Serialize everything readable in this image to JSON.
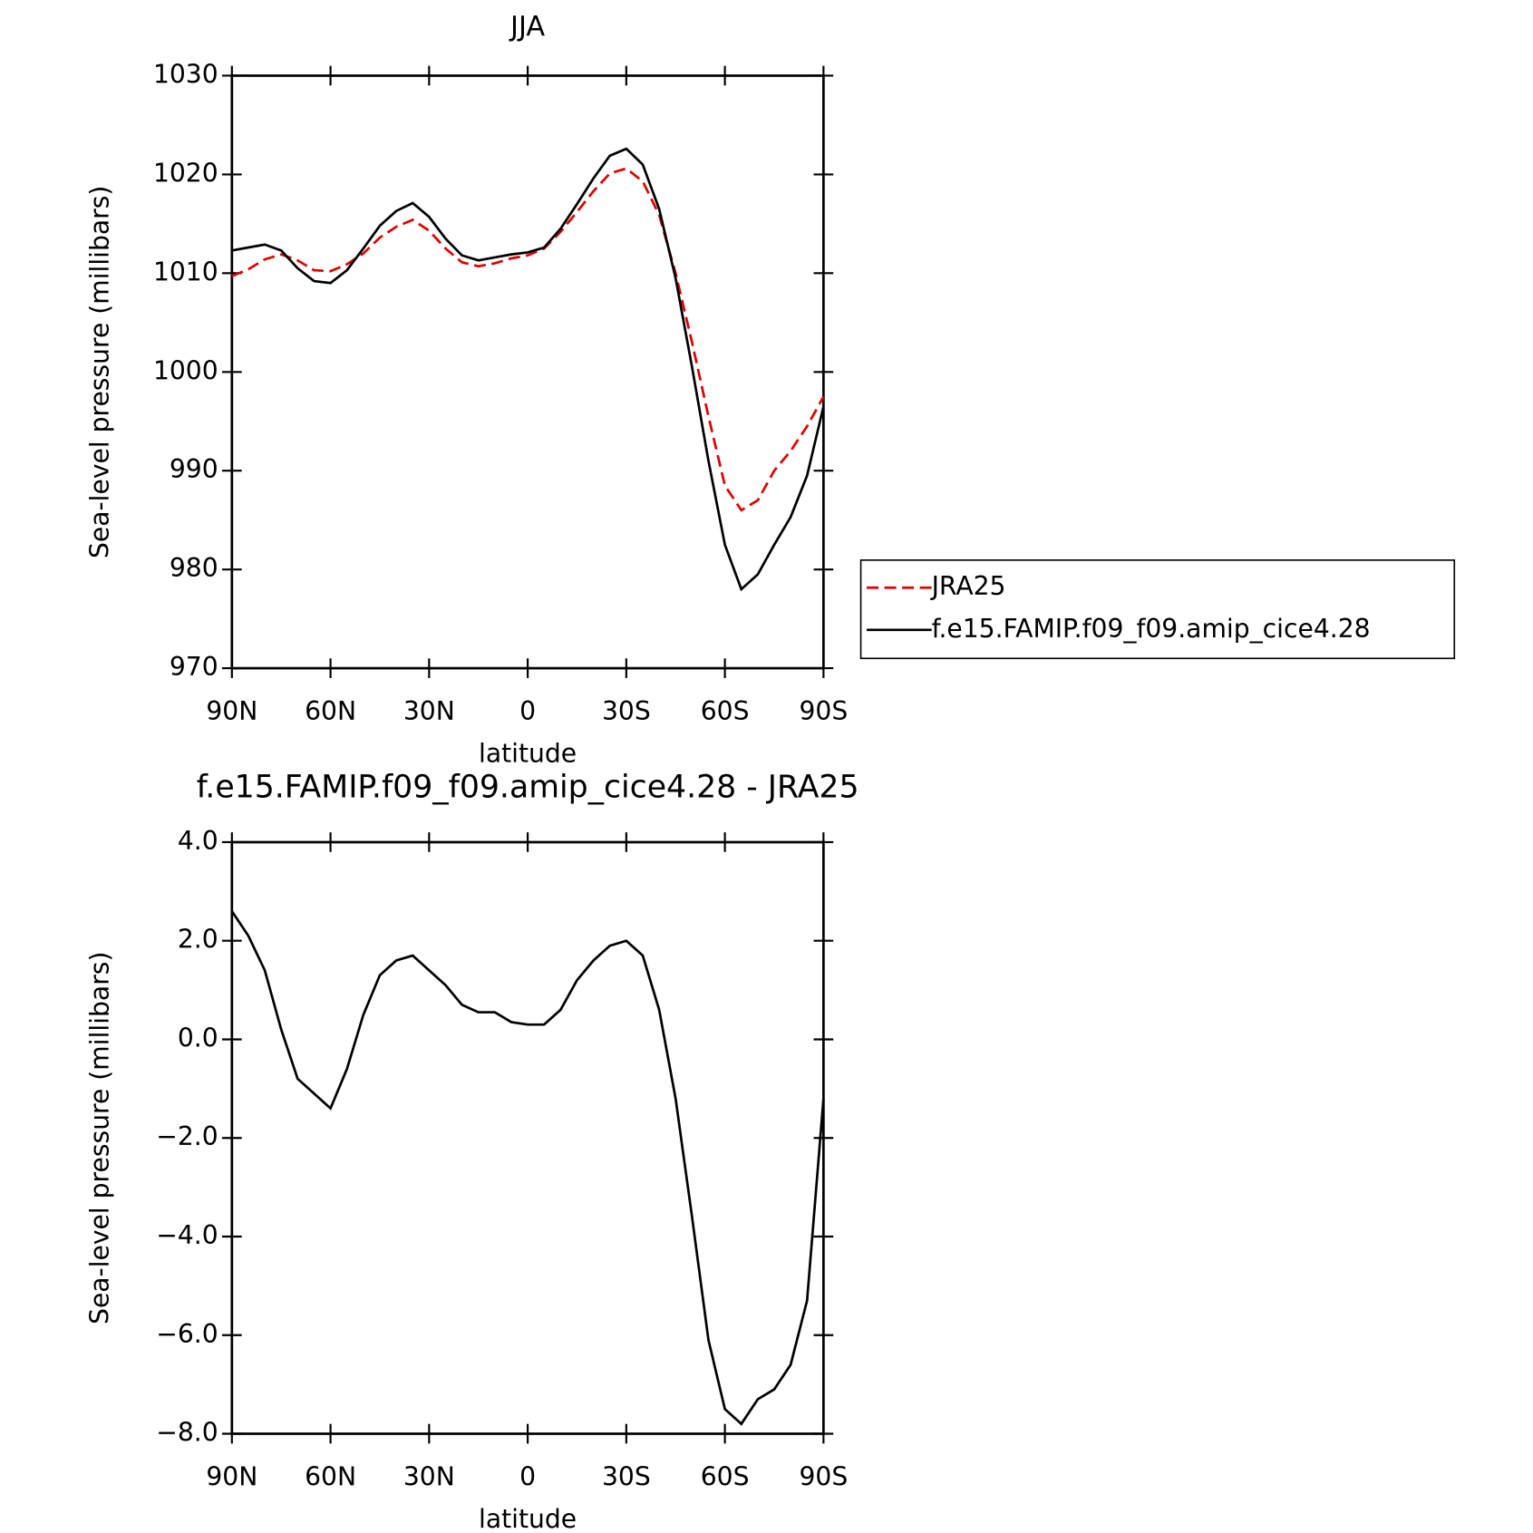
{
  "chart_data": [
    {
      "type": "line",
      "title": "JJA",
      "xlabel": "latitude",
      "ylabel": "Sea-level pressure (millibars)",
      "x": [
        90,
        85,
        80,
        75,
        70,
        65,
        60,
        55,
        50,
        45,
        40,
        35,
        30,
        25,
        20,
        15,
        10,
        5,
        0,
        -5,
        -10,
        -15,
        -20,
        -25,
        -30,
        -35,
        -40,
        -45,
        -50,
        -55,
        -60,
        -65,
        -70,
        -75,
        -80,
        -85,
        -90
      ],
      "series": [
        {
          "name": "JRA25",
          "color": "#e00000",
          "style": "dashed",
          "values": [
            1009.7,
            1010.4,
            1011.4,
            1011.9,
            1011.3,
            1010.3,
            1010.2,
            1010.9,
            1012.0,
            1013.6,
            1014.7,
            1015.4,
            1014.3,
            1012.5,
            1011.1,
            1010.7,
            1011.0,
            1011.5,
            1011.8,
            1012.5,
            1014.2,
            1016.2,
            1018.3,
            1020.1,
            1020.6,
            1019.3,
            1015.9,
            1010.0,
            1003.0,
            995.5,
            988.5,
            986.0,
            987.0,
            990.0,
            992.0,
            994.5,
            997.5
          ]
        },
        {
          "name": "f.e15.FAMIP.f09_f09.amip_cice4.28",
          "color": "#000000",
          "style": "solid",
          "values": [
            1012.3,
            1012.6,
            1012.9,
            1012.3,
            1010.5,
            1009.2,
            1009.0,
            1010.3,
            1012.5,
            1014.8,
            1016.3,
            1017.1,
            1015.7,
            1013.5,
            1011.8,
            1011.3,
            1011.6,
            1011.9,
            1012.1,
            1012.6,
            1014.5,
            1017.0,
            1019.6,
            1021.9,
            1022.6,
            1021.0,
            1016.5,
            1009.5,
            1000.5,
            991.0,
            982.5,
            978.0,
            979.5,
            982.5,
            985.3,
            989.5,
            996.5
          ]
        }
      ],
      "xlim": [
        90,
        -90
      ],
      "xticks": [
        {
          "value": 90,
          "label": "90N"
        },
        {
          "value": 60,
          "label": "60N"
        },
        {
          "value": 30,
          "label": "30N"
        },
        0,
        {
          "value": -30,
          "label": "30S"
        },
        {
          "value": -60,
          "label": "60S"
        },
        {
          "value": -90,
          "label": "90S"
        }
      ],
      "ylim": [
        970,
        1030
      ],
      "yticks": [
        970,
        980,
        990,
        1000,
        1010,
        1020,
        1030
      ],
      "legend": "right"
    },
    {
      "type": "line",
      "title": "f.e15.FAMIP.f09_f09.amip_cice4.28 - JRA25",
      "xlabel": "latitude",
      "ylabel": "Sea-level pressure (millibars)",
      "x": [
        90,
        85,
        80,
        75,
        70,
        65,
        60,
        55,
        50,
        45,
        40,
        35,
        30,
        25,
        20,
        15,
        10,
        5,
        0,
        -5,
        -10,
        -15,
        -20,
        -25,
        -30,
        -35,
        -40,
        -45,
        -50,
        -55,
        -60,
        -65,
        -70,
        -75,
        -80,
        -85,
        -90
      ],
      "series": [
        {
          "color": "#000000",
          "style": "solid",
          "values": [
            2.6,
            2.1,
            1.4,
            0.2,
            -0.8,
            -1.1,
            -1.4,
            -0.6,
            0.5,
            1.3,
            1.6,
            1.7,
            1.4,
            1.1,
            0.7,
            0.55,
            0.55,
            0.35,
            0.3,
            0.3,
            0.6,
            1.2,
            1.6,
            1.9,
            2.0,
            1.7,
            0.6,
            -1.2,
            -3.6,
            -6.1,
            -7.5,
            -7.8,
            -7.3,
            -7.1,
            -6.6,
            -5.3,
            -1.2
          ]
        }
      ],
      "xlim": [
        90,
        -90
      ],
      "xticks": [
        {
          "value": 90,
          "label": "90N"
        },
        {
          "value": 60,
          "label": "60N"
        },
        {
          "value": 30,
          "label": "30N"
        },
        0,
        {
          "value": -30,
          "label": "30S"
        },
        {
          "value": -60,
          "label": "60S"
        },
        {
          "value": -90,
          "label": "90S"
        }
      ],
      "ylim": [
        -8,
        4
      ],
      "yticks": [
        {
          "value": -8,
          "label": "−8.0"
        },
        {
          "value": -6,
          "label": "−6.0"
        },
        {
          "value": -4,
          "label": "−4.0"
        },
        {
          "value": -2,
          "label": "−2.0"
        },
        {
          "value": 0,
          "label": "0.0"
        },
        {
          "value": 2,
          "label": "2.0"
        },
        {
          "value": 4,
          "label": "4.0"
        }
      ]
    }
  ]
}
